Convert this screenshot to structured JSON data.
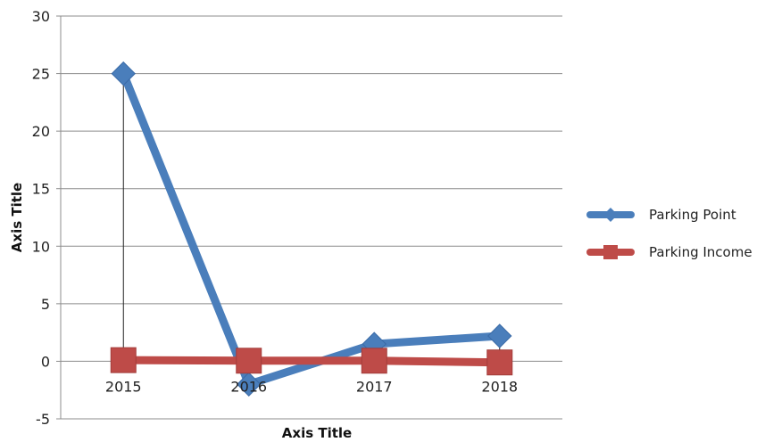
{
  "chart_data": {
    "type": "line",
    "categories": [
      "2015",
      "2016",
      "2017",
      "2018"
    ],
    "series": [
      {
        "name": "Parking Point",
        "values": [
          25,
          -2,
          1.5,
          2.2
        ],
        "color": "#4a7ebb",
        "marker": "diamond"
      },
      {
        "name": "Parking Income",
        "values": [
          0.1,
          0.05,
          0.05,
          -0.1
        ],
        "color": "#be4b48",
        "marker": "square"
      }
    ],
    "drop_lines": true,
    "xlabel": "Axis Title",
    "ylabel": "Axis Title",
    "ylim": [
      -5,
      30
    ],
    "yticks": [
      "-5",
      "0",
      "5",
      "10",
      "15",
      "20",
      "25",
      "30"
    ],
    "grid": true,
    "legend_position": "right"
  }
}
